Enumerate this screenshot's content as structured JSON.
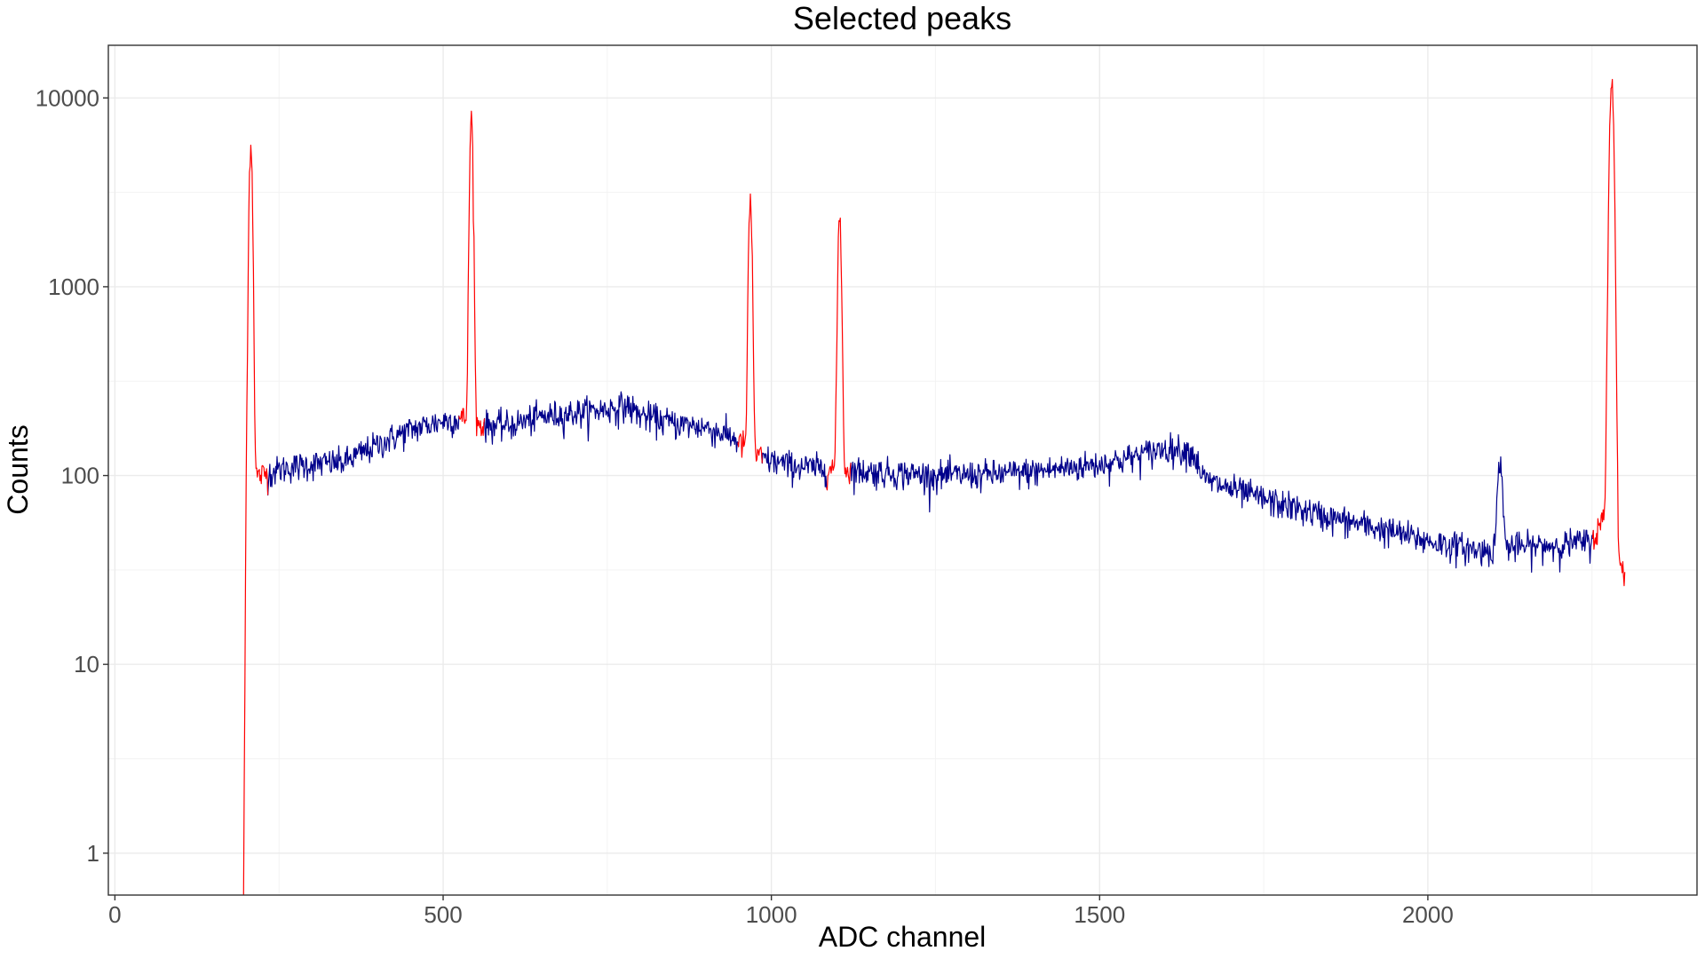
{
  "chart_data": {
    "type": "line",
    "title": "Selected peaks",
    "xlabel": "ADC channel",
    "ylabel": "Counts",
    "x_scale": "linear",
    "y_scale": "log10",
    "xlim": [
      -10,
      2410
    ],
    "ylim": [
      0.6,
      19000
    ],
    "x_ticks": [
      0,
      500,
      1000,
      1500,
      2000
    ],
    "x_tick_labels": [
      "0",
      "500",
      "1000",
      "1500",
      "2000"
    ],
    "y_ticks": [
      1,
      10,
      100,
      1000,
      10000
    ],
    "y_tick_labels": [
      "1",
      "10",
      "100",
      "1000",
      "10000"
    ],
    "grid": true,
    "legend": "none",
    "colors": {
      "spectrum": "#00008b",
      "peak": "#ff0000"
    },
    "background_keypoints": {
      "x": [
        220,
        260,
        300,
        350,
        400,
        450,
        500,
        530,
        560,
        600,
        650,
        700,
        750,
        780,
        800,
        850,
        900,
        940,
        980,
        1020,
        1060,
        1100,
        1150,
        1200,
        1250,
        1300,
        1350,
        1400,
        1450,
        1500,
        1550,
        1600,
        1640,
        1660,
        1700,
        1750,
        1800,
        1850,
        1900,
        1950,
        2000,
        2050,
        2080,
        2120,
        2150,
        2200,
        2250,
        2270,
        2290,
        2300
      ],
      "y": [
        100,
        110,
        115,
        118,
        145,
        175,
        195,
        200,
        185,
        185,
        205,
        215,
        225,
        235,
        210,
        190,
        180,
        160,
        125,
        115,
        110,
        108,
        105,
        103,
        100,
        101,
        102,
        105,
        110,
        115,
        125,
        140,
        135,
        95,
        85,
        75,
        67,
        60,
        55,
        50,
        45,
        42,
        40,
        42,
        42,
        43,
        45,
        60,
        35,
        30
      ]
    },
    "peaks": [
      {
        "center": 207,
        "height": 5800,
        "sigma": 2.2,
        "from": 196,
        "to": 232
      },
      {
        "center": 543,
        "height": 7700,
        "sigma": 2.2,
        "from": 525,
        "to": 562
      },
      {
        "center": 968,
        "height": 2700,
        "sigma": 2.3,
        "from": 950,
        "to": 985
      },
      {
        "center": 1104,
        "height": 2300,
        "sigma": 2.3,
        "from": 1085,
        "to": 1120
      },
      {
        "center": 2280,
        "height": 12000,
        "sigma": 2.8,
        "from": 2252,
        "to": 2300
      }
    ],
    "small_peaks": [
      {
        "center": 2110,
        "height": 125,
        "sigma": 3.2
      }
    ]
  }
}
